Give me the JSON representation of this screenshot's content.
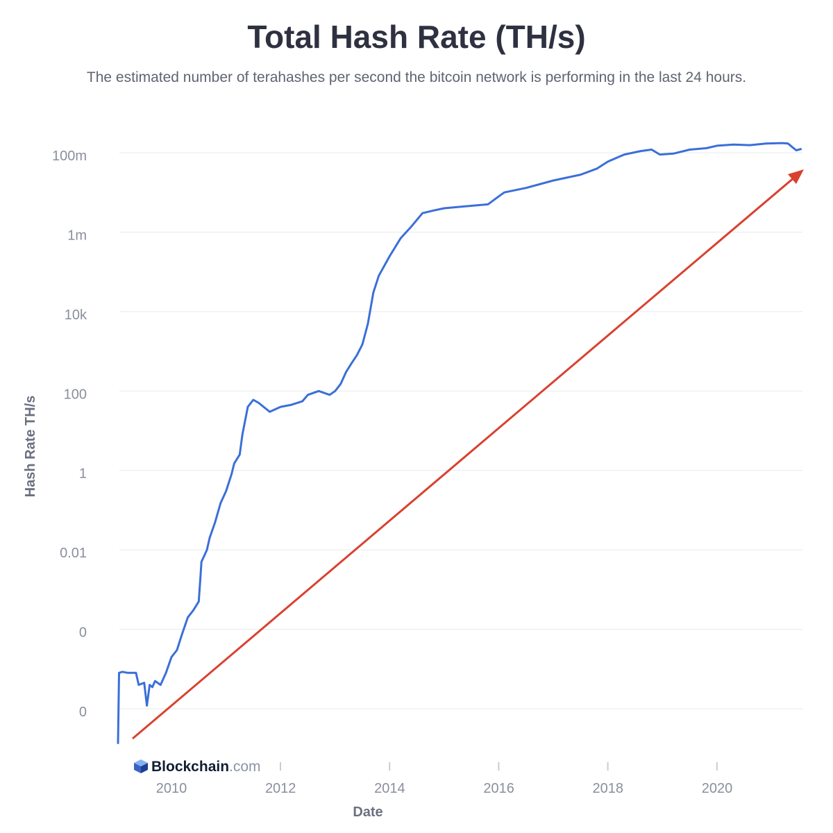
{
  "header": {
    "title": "Total Hash Rate (TH/s)",
    "subtitle": "The estimated number of terahashes per second the bitcoin network is performing in the last 24 hours."
  },
  "brand": {
    "name_main": "Blockchain",
    "name_domain": ".com",
    "icon": "blockchain-cube-icon"
  },
  "colors": {
    "series": "#3a6fd8",
    "arrow": "#d9412f",
    "grid": "#e8e9ee"
  },
  "chart_data": {
    "type": "line",
    "title": "Total Hash Rate (TH/s)",
    "xlabel": "Date",
    "ylabel": "Hash Rate TH/s",
    "y_scale": "log",
    "y_ticks": [
      {
        "value": 1e-06,
        "label": "0"
      },
      {
        "value": 0.0001,
        "label": "0"
      },
      {
        "value": 0.01,
        "label": "0.01"
      },
      {
        "value": 1,
        "label": "1"
      },
      {
        "value": 100,
        "label": "100"
      },
      {
        "value": 10000,
        "label": "10k"
      },
      {
        "value": 1000000,
        "label": "1m"
      },
      {
        "value": 100000000,
        "label": "100m"
      }
    ],
    "x_ticks": [
      2010,
      2012,
      2014,
      2016,
      2018,
      2020
    ],
    "xlim": [
      2009.0,
      2021.6
    ],
    "ylim_exp": [
      -6.95,
      8.05
    ],
    "grid": true,
    "legend": "none",
    "series": [
      {
        "points": [
          [
            2009.02,
            1.3e-07
          ],
          [
            2009.04,
            8e-06
          ],
          [
            2009.1,
            8.5e-06
          ],
          [
            2009.2,
            8e-06
          ],
          [
            2009.35,
            8e-06
          ],
          [
            2009.4,
            4e-06
          ],
          [
            2009.5,
            4.5e-06
          ],
          [
            2009.55,
            1.2e-06
          ],
          [
            2009.6,
            4e-06
          ],
          [
            2009.65,
            3.5e-06
          ],
          [
            2009.7,
            5e-06
          ],
          [
            2009.8,
            4e-06
          ],
          [
            2009.9,
            8e-06
          ],
          [
            2010.0,
            2e-05
          ],
          [
            2010.1,
            3e-05
          ],
          [
            2010.2,
            8e-05
          ],
          [
            2010.3,
            0.0002
          ],
          [
            2010.4,
            0.0003
          ],
          [
            2010.5,
            0.0005
          ],
          [
            2010.53,
            0.002
          ],
          [
            2010.55,
            0.005
          ],
          [
            2010.65,
            0.01
          ],
          [
            2010.7,
            0.02
          ],
          [
            2010.8,
            0.05
          ],
          [
            2010.9,
            0.15
          ],
          [
            2011.0,
            0.3
          ],
          [
            2011.1,
            0.8
          ],
          [
            2011.15,
            1.5
          ],
          [
            2011.25,
            2.5
          ],
          [
            2011.3,
            8
          ],
          [
            2011.4,
            40
          ],
          [
            2011.5,
            60
          ],
          [
            2011.6,
            50
          ],
          [
            2011.8,
            30
          ],
          [
            2012.0,
            40
          ],
          [
            2012.2,
            45
          ],
          [
            2012.4,
            55
          ],
          [
            2012.5,
            80
          ],
          [
            2012.7,
            100
          ],
          [
            2012.9,
            80
          ],
          [
            2013.0,
            100
          ],
          [
            2013.1,
            150
          ],
          [
            2013.2,
            300
          ],
          [
            2013.3,
            500
          ],
          [
            2013.4,
            800
          ],
          [
            2013.5,
            1500
          ],
          [
            2013.6,
            5000
          ],
          [
            2013.7,
            30000
          ],
          [
            2013.8,
            80000
          ],
          [
            2014.0,
            250000
          ],
          [
            2014.2,
            700000
          ],
          [
            2014.4,
            1400000
          ],
          [
            2014.6,
            3000000
          ],
          [
            2014.8,
            3500000
          ],
          [
            2015.0,
            4000000
          ],
          [
            2015.4,
            4500000
          ],
          [
            2015.8,
            5000000
          ],
          [
            2016.0,
            8000000
          ],
          [
            2016.1,
            10000000
          ],
          [
            2016.5,
            13000000
          ],
          [
            2017.0,
            20000000
          ],
          [
            2017.5,
            28000000
          ],
          [
            2017.8,
            40000000
          ],
          [
            2018.0,
            60000000
          ],
          [
            2018.3,
            90000000
          ],
          [
            2018.6,
            110000000
          ],
          [
            2018.8,
            120000000
          ],
          [
            2018.95,
            90000000
          ],
          [
            2019.2,
            95000000
          ],
          [
            2019.5,
            120000000
          ],
          [
            2019.8,
            130000000
          ],
          [
            2020.0,
            150000000
          ],
          [
            2020.3,
            160000000
          ],
          [
            2020.6,
            155000000
          ],
          [
            2020.9,
            170000000
          ],
          [
            2021.2,
            175000000
          ],
          [
            2021.3,
            170000000
          ],
          [
            2021.45,
            115000000
          ],
          [
            2021.55,
            125000000
          ]
        ]
      }
    ]
  }
}
